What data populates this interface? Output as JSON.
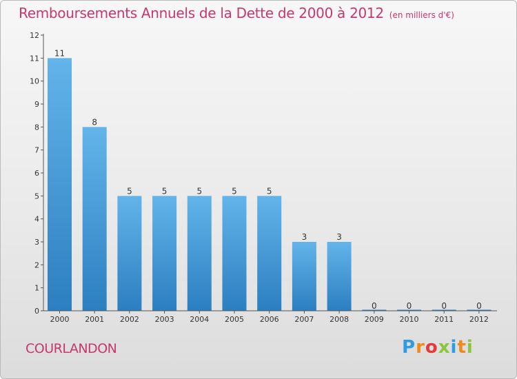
{
  "header": {
    "title": "Remboursements Annuels de la Dette de 2000 à 2012",
    "unit": "(en milliers d'€)"
  },
  "footer": {
    "commune": "COURLANDON",
    "brand": "Proxiti"
  },
  "colors": {
    "title": "#c8366e",
    "bar_top": "#62b4ea",
    "bar_bottom": "#2c7fc0",
    "axis": "#555555"
  },
  "chart_data": {
    "type": "bar",
    "title": "Remboursements Annuels de la Dette de 2000 à 2012",
    "subtitle": "(en milliers d'€)",
    "xlabel": "",
    "ylabel": "",
    "categories": [
      "2000",
      "2001",
      "2002",
      "2003",
      "2004",
      "2005",
      "2006",
      "2007",
      "2008",
      "2009",
      "2010",
      "2011",
      "2012"
    ],
    "values": [
      11,
      8,
      5,
      5,
      5,
      5,
      5,
      3,
      3,
      0,
      0,
      0,
      0
    ],
    "data_labels": [
      "11",
      "8",
      "5",
      "5",
      "5",
      "5",
      "5",
      "3",
      "3",
      "0",
      "0",
      "0",
      "0"
    ],
    "ylim": [
      0,
      12
    ],
    "yticks": [
      0,
      1,
      2,
      3,
      4,
      5,
      6,
      7,
      8,
      9,
      10,
      11,
      12
    ],
    "grid": false,
    "legend": "none"
  }
}
